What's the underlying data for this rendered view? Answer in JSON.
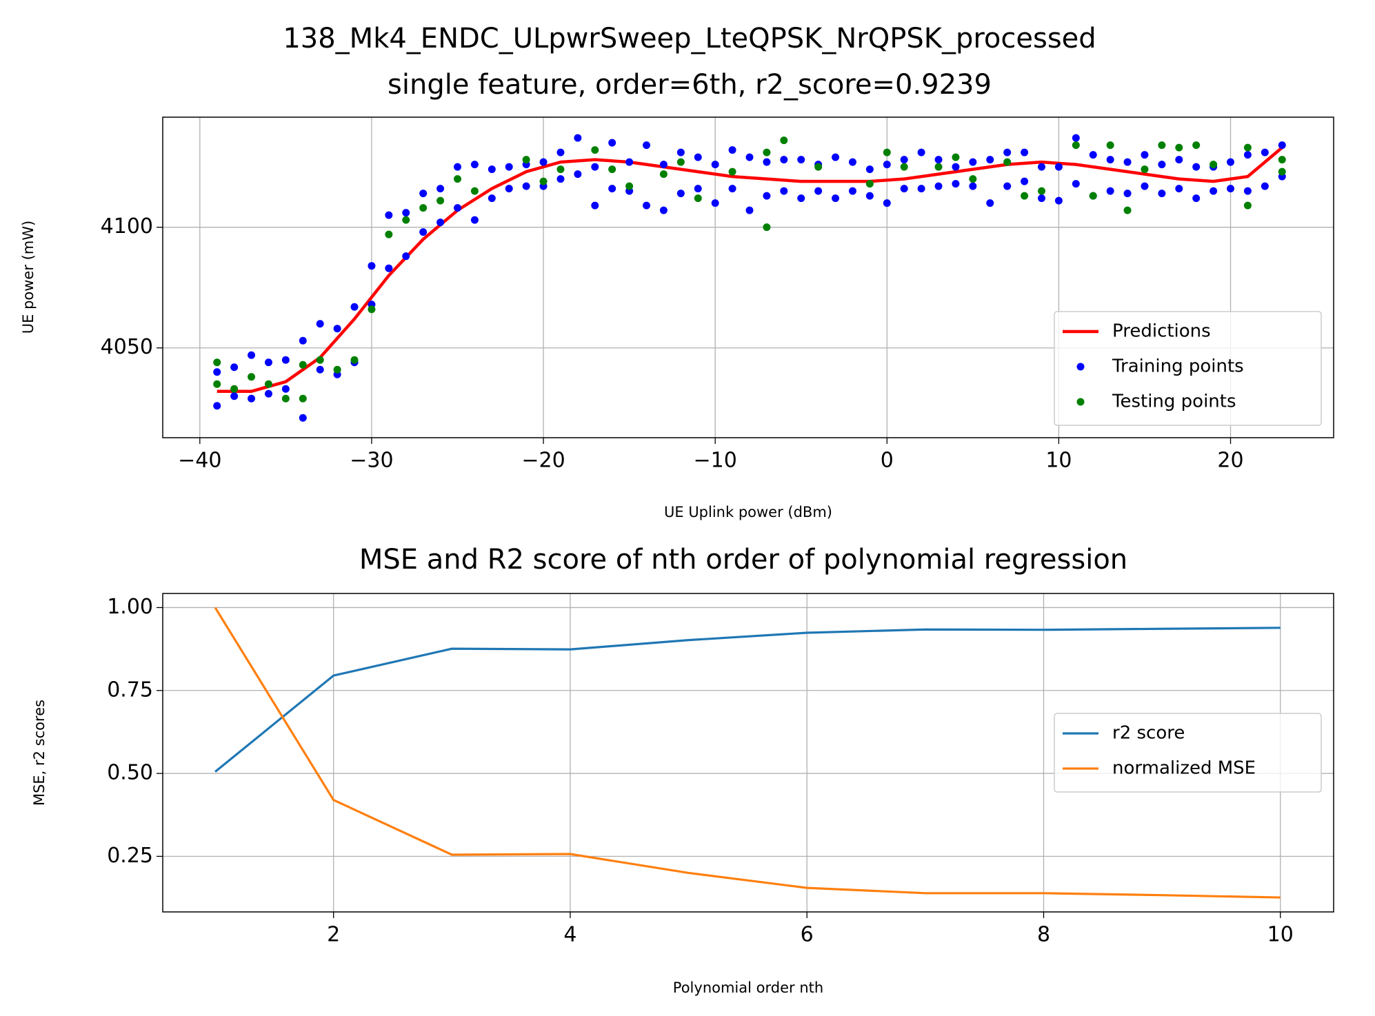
{
  "chart_data": [
    {
      "type": "scatter",
      "title": "138_Mk4_ENDC_ULpwrSweep_LteQPSK_NrQPSK_processed",
      "subtitle": "single feature, order=6th, r2_score=0.9239",
      "x_label": "UE Uplink power (dBm)",
      "y_label": "UE power (mW)",
      "xlim": [
        -42.16,
        26.0
      ],
      "ylim": [
        4012.8,
        4145.6
      ],
      "xticks": [
        {
          "value": -40,
          "label": "−40"
        },
        {
          "value": -30,
          "label": "−30"
        },
        {
          "value": -20,
          "label": "−20"
        },
        {
          "value": -10,
          "label": "−10"
        },
        0,
        10,
        20
      ],
      "yticks": [
        4050,
        4100
      ],
      "grid": true,
      "legend": "lower right",
      "series": [
        {
          "name": "Predictions",
          "type": "line",
          "color": "#ff0000",
          "x": [
            -39,
            -37,
            -35,
            -33,
            -31,
            -29,
            -27,
            -25,
            -23,
            -21,
            -19,
            -17,
            -15,
            -13,
            -11,
            -9,
            -7,
            -5,
            -3,
            -1,
            1,
            3,
            5,
            7,
            9,
            11,
            13,
            15,
            17,
            19,
            21,
            23
          ],
          "values": [
            4032,
            4032,
            4036,
            4046,
            4062,
            4080,
            4095,
            4107,
            4116,
            4123,
            4127,
            4128,
            4127,
            4125,
            4123,
            4121,
            4120,
            4119,
            4119,
            4119,
            4120,
            4122,
            4124,
            4126,
            4127,
            4126,
            4124,
            4122,
            4120,
            4119,
            4121,
            4133
          ]
        },
        {
          "name": "Training points",
          "type": "scatter",
          "color": "#0000ff",
          "x": [
            -39,
            -39,
            -38,
            -38,
            -37,
            -37,
            -36,
            -36,
            -35,
            -35,
            -34,
            -34,
            -33,
            -33,
            -32,
            -32,
            -31,
            -31,
            -30,
            -30,
            -29,
            -29,
            -28,
            -28,
            -27,
            -27,
            -26,
            -26,
            -25,
            -25,
            -24,
            -24,
            -23,
            -23,
            -22,
            -22,
            -21,
            -21,
            -20,
            -20,
            -19,
            -19,
            -18,
            -18,
            -17,
            -17,
            -16,
            -16,
            -15,
            -15,
            -14,
            -14,
            -13,
            -13,
            -12,
            -12,
            -11,
            -11,
            -10,
            -10,
            -9,
            -9,
            -8,
            -8,
            -7,
            -7,
            -6,
            -6,
            -5,
            -5,
            -4,
            -4,
            -3,
            -3,
            -2,
            -2,
            -1,
            -1,
            0,
            0,
            1,
            1,
            2,
            2,
            3,
            3,
            4,
            4,
            5,
            5,
            6,
            6,
            7,
            7,
            8,
            8,
            9,
            9,
            10,
            10,
            11,
            11,
            12,
            12,
            13,
            13,
            14,
            14,
            15,
            15,
            16,
            16,
            17,
            17,
            18,
            18,
            19,
            19,
            20,
            20,
            21,
            21,
            22,
            22,
            23,
            23
          ],
          "values": [
            4026,
            4040,
            4030,
            4042,
            4029,
            4047,
            4031,
            4044,
            4033,
            4045,
            4021,
            4053,
            4041,
            4060,
            4039,
            4058,
            4044,
            4067,
            4068,
            4084,
            4083,
            4105,
            4088,
            4106,
            4098,
            4114,
            4102,
            4116,
            4108,
            4125,
            4103,
            4126,
            4112,
            4124,
            4116,
            4125,
            4117,
            4126,
            4117,
            4127,
            4120,
            4131,
            4122,
            4137,
            4109,
            4125,
            4116,
            4135,
            4115,
            4127,
            4109,
            4134,
            4107,
            4126,
            4114,
            4131,
            4116,
            4129,
            4110,
            4126,
            4116,
            4132,
            4107,
            4129,
            4113,
            4127,
            4115,
            4128,
            4112,
            4128,
            4115,
            4126,
            4112,
            4129,
            4115,
            4127,
            4113,
            4124,
            4110,
            4126,
            4116,
            4128,
            4116,
            4131,
            4117,
            4128,
            4118,
            4125,
            4117,
            4127,
            4110,
            4128,
            4117,
            4131,
            4119,
            4131,
            4112,
            4125,
            4111,
            4125,
            4118,
            4137,
            4113,
            4130,
            4115,
            4128,
            4114,
            4127,
            4117,
            4130,
            4114,
            4126,
            4116,
            4128,
            4112,
            4125,
            4115,
            4125,
            4116,
            4127,
            4115,
            4130,
            4117,
            4131,
            4121,
            4134
          ]
        },
        {
          "name": "Testing points",
          "type": "scatter",
          "color": "#008000",
          "x": [
            -39,
            -39,
            -38,
            -37,
            -36,
            -35,
            -34,
            -34,
            -33,
            -32,
            -31,
            -30,
            -29,
            -28,
            -27,
            -26,
            -25,
            -24,
            -21,
            -20,
            -19,
            -17,
            -16,
            -15,
            -13,
            -12,
            -11,
            -9,
            -7,
            -7,
            -6,
            -4,
            -1,
            0,
            1,
            3,
            4,
            5,
            7,
            8,
            9,
            11,
            12,
            13,
            14,
            15,
            16,
            17,
            18,
            19,
            21,
            21,
            23,
            23
          ],
          "values": [
            4035,
            4044,
            4033,
            4038,
            4035,
            4029,
            4029,
            4043,
            4045,
            4041,
            4045,
            4066,
            4097,
            4103,
            4108,
            4111,
            4120,
            4115,
            4128,
            4119,
            4124,
            4132,
            4124,
            4117,
            4122,
            4127,
            4112,
            4123,
            4100,
            4131,
            4136,
            4125,
            4118,
            4131,
            4125,
            4125,
            4129,
            4120,
            4127,
            4113,
            4115,
            4134,
            4113,
            4134,
            4107,
            4124,
            4134,
            4133,
            4134,
            4126,
            4109,
            4133,
            4123,
            4128
          ]
        }
      ]
    },
    {
      "type": "line",
      "title": "MSE and R2 score of nth order of polynomial regression",
      "x_label": "Polynomial order nth",
      "y_label": "MSE, r2 scores",
      "xlim": [
        0.557,
        10.45
      ],
      "ylim": [
        0.0825,
        1.0425
      ],
      "xticks": [
        2,
        4,
        6,
        8,
        10
      ],
      "yticks": [
        0.25,
        {
          "value": 0.5,
          "label": "0.50"
        },
        0.75,
        {
          "value": 1.0,
          "label": "1.00"
        }
      ],
      "grid": true,
      "legend": "center right",
      "x": [
        1,
        2,
        3,
        4,
        5,
        6,
        7,
        8,
        9,
        10
      ],
      "series": [
        {
          "name": "r2 score",
          "type": "line",
          "color": "#1f77b4",
          "values": [
            0.505,
            0.795,
            0.876,
            0.874,
            0.902,
            0.924,
            0.934,
            0.933,
            0.936,
            0.939
          ]
        },
        {
          "name": "normalized MSE",
          "type": "line",
          "color": "#ff7f0e",
          "values": [
            1.0,
            0.42,
            0.255,
            0.257,
            0.2,
            0.155,
            0.139,
            0.139,
            0.133,
            0.126
          ]
        }
      ]
    }
  ]
}
